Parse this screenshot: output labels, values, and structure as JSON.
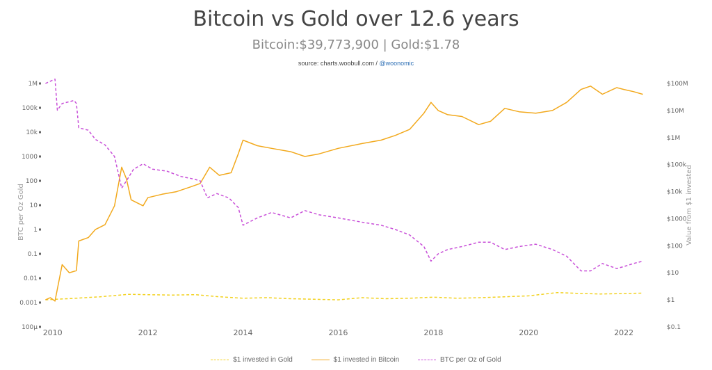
{
  "header": {
    "title": "Bitcoin vs Gold over 12.6 years",
    "subtitle": "Bitcoin:$39,773,900 | Gold:$1.78",
    "source_prefix": "source: charts.woobull.com /",
    "source_handle": "@woonomic"
  },
  "colors": {
    "gold": "#f2d11e",
    "bitcoin": "#f2a91d",
    "ratio": "#c84fd8"
  },
  "chart_data": {
    "type": "line",
    "title": "Bitcoin vs Gold over 12.6 years",
    "xlim": [
      2009.8,
      2022.45
    ],
    "x_ticks": [
      2010,
      2012,
      2014,
      2016,
      2018,
      2020,
      2022
    ],
    "left_axis": {
      "label": "BTC per Oz Gold",
      "scale": "log",
      "ylim": [
        0.0001,
        1000000
      ],
      "tick_values": [
        0.0001,
        0.001,
        0.01,
        0.1,
        1,
        10,
        100,
        1000,
        10000,
        100000,
        1000000
      ],
      "tick_labels": [
        "100µ",
        "0.001",
        "0.01",
        "0.1",
        "1",
        "10",
        "100",
        "1000",
        "10k",
        "100k",
        "1M"
      ]
    },
    "right_axis": {
      "label": "Value from $1 invested",
      "scale": "log",
      "ylim": [
        0.1,
        100000000
      ],
      "tick_values": [
        0.1,
        1,
        10,
        100,
        1000,
        10000,
        100000,
        1000000,
        10000000,
        100000000
      ],
      "tick_labels": [
        "$0.1",
        "$1",
        "$10",
        "$100",
        "$1000",
        "$10k",
        "$100k",
        "$1M",
        "$10M",
        "$100M"
      ]
    },
    "legend_position": "bottom",
    "series": [
      {
        "name": "$1 invested in Gold",
        "axis": "right",
        "style": "dashed",
        "x": [
          2009.85,
          2010.5,
          2011.0,
          2011.6,
          2012.0,
          2012.5,
          2013.0,
          2013.5,
          2014.0,
          2014.5,
          2015.0,
          2015.5,
          2016.0,
          2016.5,
          2017.0,
          2017.5,
          2018.0,
          2018.5,
          2019.0,
          2019.5,
          2020.0,
          2020.6,
          2021.0,
          2021.5,
          2022.0,
          2022.4
        ],
        "values": [
          1.0,
          1.15,
          1.3,
          1.6,
          1.55,
          1.5,
          1.55,
          1.3,
          1.15,
          1.2,
          1.1,
          1.05,
          1.0,
          1.2,
          1.1,
          1.15,
          1.25,
          1.15,
          1.2,
          1.3,
          1.4,
          1.85,
          1.75,
          1.65,
          1.7,
          1.78
        ]
      },
      {
        "name": "$1 invested in Bitcoin",
        "axis": "right",
        "style": "solid",
        "x": [
          2009.85,
          2009.95,
          2010.05,
          2010.2,
          2010.35,
          2010.5,
          2010.55,
          2010.75,
          2010.9,
          2011.1,
          2011.3,
          2011.45,
          2011.55,
          2011.65,
          2011.9,
          2012.0,
          2012.3,
          2012.6,
          2012.9,
          2013.1,
          2013.3,
          2013.5,
          2013.75,
          2013.9,
          2014.0,
          2014.3,
          2014.6,
          2015.0,
          2015.3,
          2015.6,
          2016.0,
          2016.5,
          2016.9,
          2017.2,
          2017.5,
          2017.8,
          2017.95,
          2018.1,
          2018.3,
          2018.6,
          2018.95,
          2019.2,
          2019.5,
          2019.8,
          2020.15,
          2020.5,
          2020.8,
          2021.1,
          2021.3,
          2021.55,
          2021.85,
          2022.0,
          2022.2,
          2022.4
        ],
        "values": [
          1.0,
          1.2,
          0.9,
          20,
          10,
          12,
          150,
          200,
          400,
          600,
          3000,
          80000,
          30000,
          5000,
          3000,
          6000,
          8000,
          10000,
          15000,
          20000,
          80000,
          40000,
          50000,
          250000,
          800000,
          500000,
          400000,
          300000,
          200000,
          250000,
          400000,
          600000,
          800000,
          1200000,
          2000000,
          8000000,
          20000000,
          10000000,
          7000000,
          6000000,
          3000000,
          4000000,
          12000000,
          9000000,
          8000000,
          10000000,
          20000000,
          60000000,
          80000000,
          40000000,
          70000000,
          60000000,
          50000000,
          39773900
        ]
      },
      {
        "name": "BTC per Oz of Gold",
        "axis": "left",
        "style": "dashed",
        "x": [
          2009.85,
          2010.05,
          2010.1,
          2010.2,
          2010.45,
          2010.5,
          2010.55,
          2010.75,
          2010.9,
          2011.1,
          2011.3,
          2011.45,
          2011.55,
          2011.7,
          2011.9,
          2012.1,
          2012.4,
          2012.7,
          2012.95,
          2013.1,
          2013.25,
          2013.45,
          2013.7,
          2013.9,
          2014.0,
          2014.3,
          2014.6,
          2015.0,
          2015.3,
          2015.6,
          2016.0,
          2016.5,
          2016.9,
          2017.2,
          2017.5,
          2017.8,
          2017.95,
          2018.1,
          2018.3,
          2018.6,
          2018.95,
          2019.2,
          2019.5,
          2019.8,
          2020.15,
          2020.5,
          2020.8,
          2021.1,
          2021.3,
          2021.55,
          2021.85,
          2022.0,
          2022.2,
          2022.4
        ],
        "values": [
          1000000,
          1500000,
          80000,
          150000,
          200000,
          150000,
          15000,
          12000,
          5000,
          3000,
          1000,
          50,
          100,
          300,
          500,
          300,
          250,
          150,
          120,
          100,
          20,
          30,
          20,
          8,
          1.5,
          3,
          5,
          3,
          6,
          4,
          3,
          2,
          1.5,
          1,
          0.6,
          0.2,
          0.05,
          0.1,
          0.15,
          0.2,
          0.3,
          0.3,
          0.15,
          0.2,
          0.25,
          0.15,
          0.08,
          0.02,
          0.02,
          0.04,
          0.025,
          0.03,
          0.04,
          0.05
        ]
      }
    ]
  }
}
